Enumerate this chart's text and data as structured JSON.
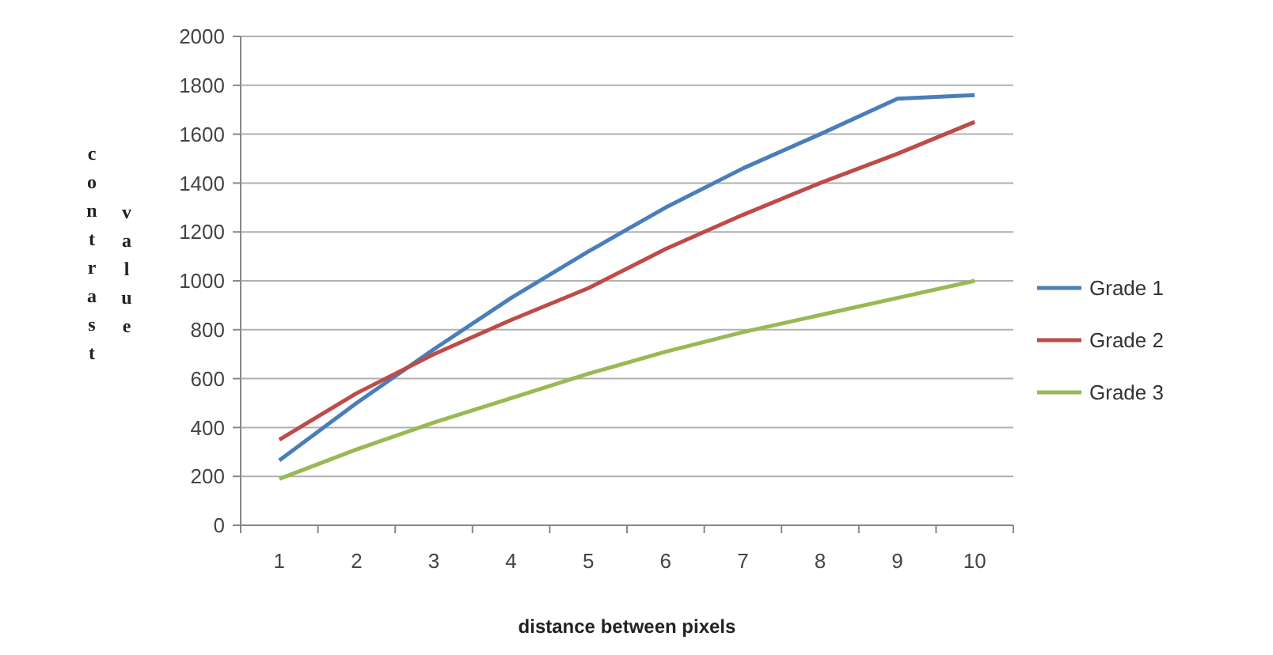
{
  "chart_data": {
    "type": "line",
    "xlabel": "distance between pixels",
    "ylabel": "contrast value",
    "categories": [
      "1",
      "2",
      "3",
      "4",
      "5",
      "6",
      "7",
      "8",
      "9",
      "10"
    ],
    "ylim": [
      0,
      2000
    ],
    "yticks": [
      0,
      200,
      400,
      600,
      800,
      1000,
      1200,
      1400,
      1600,
      1800,
      2000
    ],
    "grid": "y",
    "legend": "right",
    "marker": "none",
    "series": [
      {
        "name": "Grade 1",
        "color": "#4a7ebb",
        "values": [
          265,
          500,
          720,
          930,
          1120,
          1300,
          1460,
          1600,
          1745,
          1760
        ]
      },
      {
        "name": "Grade 2",
        "color": "#be4b48",
        "values": [
          350,
          540,
          700,
          840,
          970,
          1130,
          1270,
          1400,
          1520,
          1650
        ]
      },
      {
        "name": "Grade 3",
        "color": "#98b954",
        "values": [
          190,
          310,
          420,
          520,
          620,
          710,
          790,
          860,
          930,
          1000
        ]
      }
    ]
  }
}
